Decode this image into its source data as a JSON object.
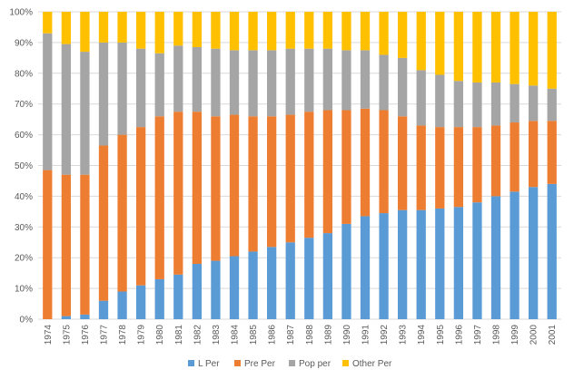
{
  "chart_data": {
    "type": "bar",
    "stacked": true,
    "categories": [
      "1974",
      "1975",
      "1976",
      "1977",
      "1978",
      "1979",
      "1980",
      "1981",
      "1982",
      "1983",
      "1984",
      "1985",
      "1986",
      "1987",
      "1988",
      "1989",
      "1990",
      "1991",
      "1992",
      "1993",
      "1994",
      "1995",
      "1996",
      "1997",
      "1998",
      "1999",
      "2000",
      "2001"
    ],
    "series": [
      {
        "name": "L Per",
        "color": "#5b9bd5",
        "values": [
          0,
          1,
          1.5,
          6,
          9,
          11,
          13,
          14.5,
          18,
          19,
          20.5,
          22,
          23.5,
          25,
          26.5,
          28,
          31,
          33.5,
          34.5,
          35.5,
          35.5,
          36,
          36.5,
          38,
          40,
          41.5,
          43,
          44
        ]
      },
      {
        "name": "Pre Per",
        "color": "#ed7d31",
        "values": [
          48.5,
          46,
          45.5,
          50.5,
          51,
          51.5,
          53,
          53,
          49.5,
          47,
          46,
          44,
          42.5,
          41.5,
          41,
          40,
          37,
          35,
          33.5,
          30.5,
          27.5,
          26.5,
          26,
          24.5,
          23,
          22.5,
          21.5,
          20.5
        ]
      },
      {
        "name": "Pop per",
        "color": "#a5a5a5",
        "values": [
          44.5,
          42.5,
          40,
          33.5,
          30,
          25.5,
          20.5,
          21.5,
          21,
          22,
          21,
          21.5,
          21.5,
          21.5,
          20.5,
          20,
          19.5,
          19,
          18,
          19,
          18,
          17,
          15,
          14.5,
          14,
          12.5,
          11.5,
          10.5
        ]
      },
      {
        "name": "Other Per",
        "color": "#ffc000",
        "values": [
          7,
          10.5,
          13,
          10,
          10,
          12,
          13.5,
          11,
          11.5,
          12,
          12.5,
          12.5,
          12.5,
          12,
          12,
          12,
          12.5,
          12.5,
          14,
          15,
          19,
          20.5,
          22.5,
          23,
          23,
          23.5,
          24,
          25
        ]
      }
    ],
    "ylim": [
      0,
      100
    ],
    "yticks": [
      "0%",
      "10%",
      "20%",
      "30%",
      "40%",
      "50%",
      "60%",
      "70%",
      "80%",
      "90%",
      "100%"
    ],
    "grid": true,
    "legend_position": "bottom",
    "title": "",
    "xlabel": "",
    "ylabel": ""
  }
}
